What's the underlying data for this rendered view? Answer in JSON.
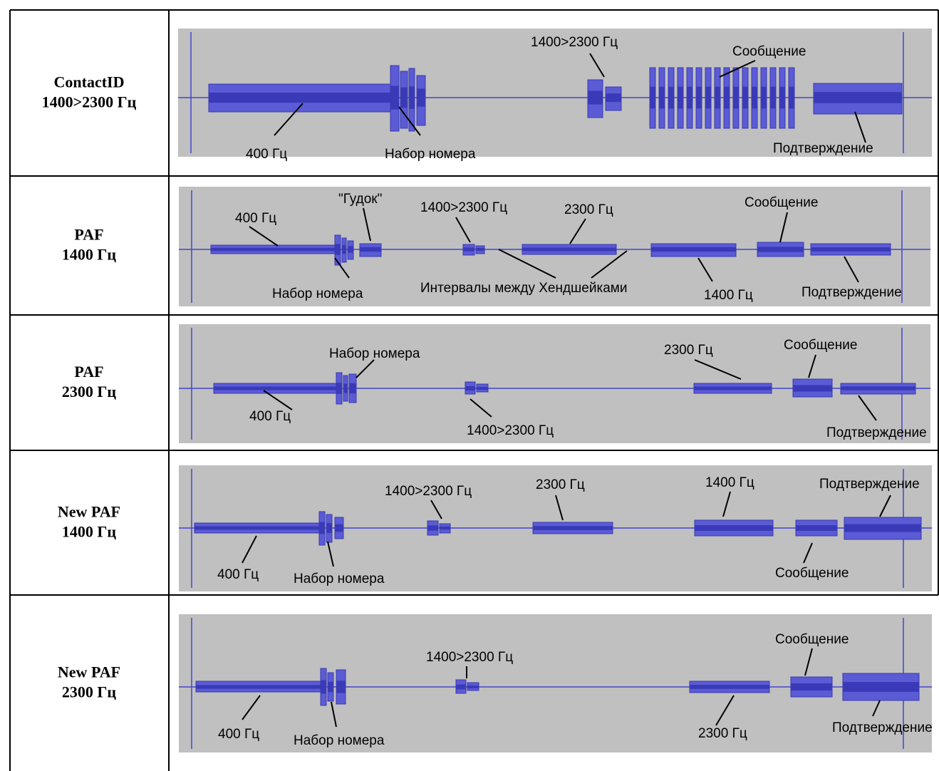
{
  "rows": [
    {
      "label": [
        "ContactID",
        "1400>2300 Гц"
      ],
      "annotations": [
        "1400>2300 Гц",
        "Сообщение",
        "400 Гц",
        "Набор номера",
        "Подтверждение"
      ]
    },
    {
      "label": [
        "PAF",
        "1400 Гц"
      ],
      "annotations": [
        "400 Гц",
        "\"Гудок\"",
        "1400>2300 Гц",
        "2300 Гц",
        "Сообщение",
        "Набор номера",
        "Интервалы между Хендшейками",
        "1400 Гц",
        "Подтверждение"
      ]
    },
    {
      "label": [
        "PAF",
        "2300 Гц"
      ],
      "annotations": [
        "Набор номера",
        "2300 Гц",
        "Сообщение",
        "400 Гц",
        "1400>2300 Гц",
        "Подтверждение"
      ]
    },
    {
      "label": [
        "New PAF",
        "1400 Гц"
      ],
      "annotations": [
        "1400>2300 Гц",
        "2300 Гц",
        "1400 Гц",
        "Подтверждение",
        "400 Гц",
        "Набор номера",
        "Сообщение"
      ]
    },
    {
      "label": [
        "New PAF",
        "2300 Гц"
      ],
      "annotations": [
        "Сообщение",
        "1400>2300 Гц",
        "2300 Гц",
        "400 Гц",
        "Набор номера",
        "Подтверждение"
      ]
    }
  ]
}
